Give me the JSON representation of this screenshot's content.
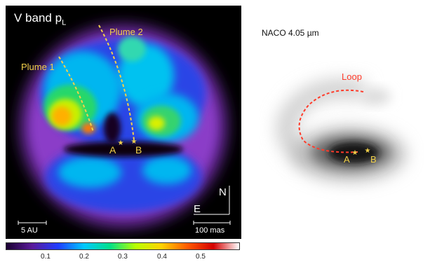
{
  "left_panel": {
    "title_main": "V band p",
    "title_sub": "L",
    "labels": {
      "plume1": "Plume 1",
      "plume2": "Plume 2",
      "star_a": "A",
      "star_b": "B",
      "north": "N",
      "east": "E",
      "scale_au": "5 AU",
      "scale_mas": "100 mas"
    },
    "colors": {
      "background": "#000000",
      "annotation": "#f2d14a",
      "text": "#ffffff"
    }
  },
  "colorbar": {
    "ticks": [
      "0.1",
      "0.2",
      "0.3",
      "0.4",
      "0.5"
    ],
    "colormap": [
      "#1a0030",
      "#5a1a9a",
      "#1f3cff",
      "#00c8ff",
      "#00e08a",
      "#b8ff00",
      "#ffd200",
      "#ff5a00",
      "#d40000",
      "#ffffff"
    ]
  },
  "right_panel": {
    "title": "NACO 4.05 µm",
    "labels": {
      "loop": "Loop",
      "star_a": "A",
      "star_b": "B"
    },
    "colors": {
      "loop": "#ff3b2a",
      "annotation": "#f2d14a"
    }
  }
}
